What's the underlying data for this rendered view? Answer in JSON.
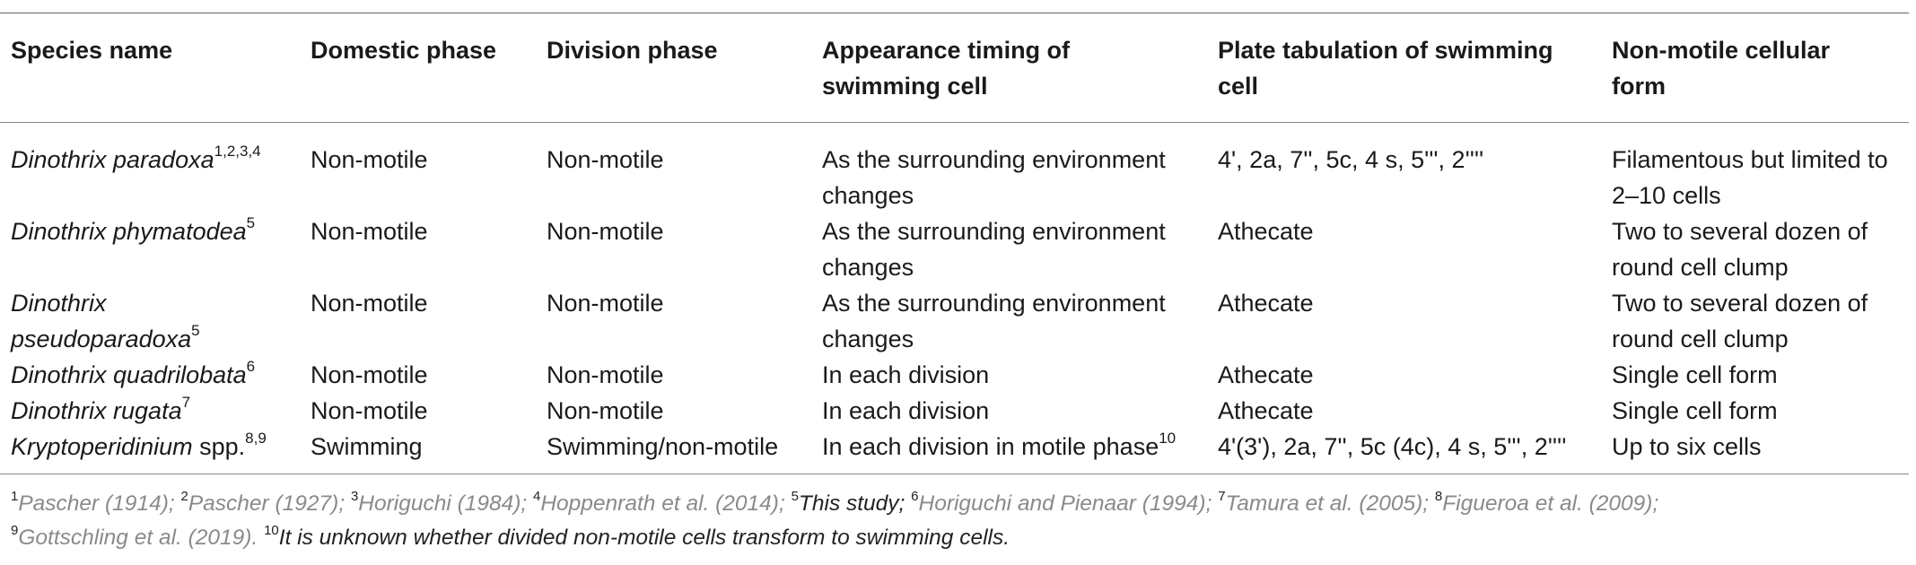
{
  "table": {
    "headers": [
      [
        "Species name"
      ],
      [
        "Domestic phase"
      ],
      [
        "Division phase"
      ],
      [
        "Appearance timing of",
        "swimming cell"
      ],
      [
        "Plate tabulation of swimming",
        "cell"
      ],
      [
        "Non-motile cellular",
        "form"
      ]
    ],
    "rows": [
      {
        "species": [
          "Dinothrix paradoxa"
        ],
        "species_sup": "1,2,3,4",
        "domestic": "Non-motile",
        "division": "Non-motile",
        "timing": [
          "As the surrounding environment",
          "changes"
        ],
        "timing_sup": "",
        "plate": "4', 2a, 7'', 5c, 4 s, 5''', 2''''",
        "form": [
          "Filamentous but limited to",
          "2–10 cells"
        ]
      },
      {
        "species": [
          "Dinothrix phymatodea"
        ],
        "species_sup": "5",
        "domestic": "Non-motile",
        "division": "Non-motile",
        "timing": [
          "As the surrounding environment",
          "changes"
        ],
        "timing_sup": "",
        "plate": "Athecate",
        "form": [
          "Two to several dozen of",
          "round cell clump"
        ]
      },
      {
        "species": [
          "Dinothrix",
          "pseudoparadoxa"
        ],
        "species_sup": "5",
        "domestic": "Non-motile",
        "division": "Non-motile",
        "timing": [
          "As the surrounding environment",
          "changes"
        ],
        "timing_sup": "",
        "plate": "Athecate",
        "form": [
          "Two to several dozen of",
          "round cell clump"
        ]
      },
      {
        "species": [
          "Dinothrix quadrilobata"
        ],
        "species_sup": "6",
        "domestic": "Non-motile",
        "division": "Non-motile",
        "timing": [
          "In each division"
        ],
        "timing_sup": "",
        "plate": "Athecate",
        "form": [
          "Single cell form"
        ]
      },
      {
        "species": [
          "Dinothrix rugata"
        ],
        "species_sup": "7",
        "domestic": "Non-motile",
        "division": "Non-motile",
        "timing": [
          "In each division"
        ],
        "timing_sup": "",
        "plate": "Athecate",
        "form": [
          "Single cell form"
        ]
      },
      {
        "species": [
          "Kryptoperidinium",
          "spp."
        ],
        "species_sup": "8,9",
        "domestic": "Swimming",
        "division": "Swimming/non-motile",
        "timing": [
          "In each division in motile phase"
        ],
        "timing_sup": "10",
        "plate": "4'(3'), 2a, 7'', 5c (4c), 4 s, 5''', 2''''",
        "form": [
          "Up to six cells"
        ]
      }
    ]
  },
  "footnote": {
    "line1": [
      {
        "sup": "1",
        "text": "Pascher (1914); ",
        "style": "ref"
      },
      {
        "sup": "2",
        "text": "Pascher (1927); ",
        "style": "ref"
      },
      {
        "sup": "3",
        "text": "Horiguchi (1984); ",
        "style": "ref"
      },
      {
        "sup": "4",
        "text": "Hoppenrath et al. (2014); ",
        "style": "ref"
      },
      {
        "sup": "5",
        "text": "This study; ",
        "style": "note"
      },
      {
        "sup": "6",
        "text": "Horiguchi and Pienaar (1994); ",
        "style": "ref"
      },
      {
        "sup": "7",
        "text": "Tamura et al. (2005); ",
        "style": "ref"
      },
      {
        "sup": "8",
        "text": "Figueroa et al. (2009);",
        "style": "ref"
      }
    ],
    "line2": [
      {
        "sup": "9",
        "text": "Gottschling et al. (2019). ",
        "style": "ref"
      },
      {
        "sup": "10",
        "text": "It is unknown whether divided non-motile cells transform to swimming cells.",
        "style": "note"
      }
    ]
  }
}
